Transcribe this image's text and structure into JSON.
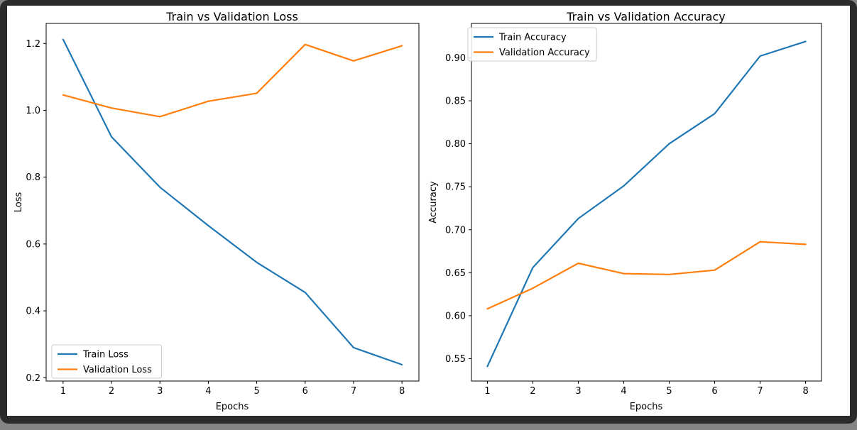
{
  "figure": {
    "background": "#ffffff",
    "window_background": "#2b2b2b"
  },
  "chart_data": [
    {
      "type": "line",
      "title": "Train vs Validation Loss",
      "xlabel": "Epochs",
      "ylabel": "Loss",
      "x": [
        1,
        2,
        3,
        4,
        5,
        6,
        7,
        8
      ],
      "series": [
        {
          "name": "Train Loss",
          "color": "#1f77b4",
          "values": [
            1.212,
            0.921,
            0.77,
            0.655,
            0.545,
            0.455,
            0.29,
            0.239
          ]
        },
        {
          "name": "Validation Loss",
          "color": "#ff7f0e",
          "values": [
            1.046,
            1.007,
            0.981,
            1.027,
            1.051,
            1.197,
            1.148,
            1.193
          ]
        }
      ],
      "xlim": [
        0.65,
        8.35
      ],
      "ylim": [
        0.19,
        1.26
      ],
      "xtick_values": [
        1,
        2,
        3,
        4,
        5,
        6,
        7,
        8
      ],
      "xtick_labels": [
        "1",
        "2",
        "3",
        "4",
        "5",
        "6",
        "7",
        "8"
      ],
      "ytick_values": [
        0.2,
        0.4,
        0.6,
        0.8,
        1.0,
        1.2
      ],
      "ytick_labels": [
        "0.2",
        "0.4",
        "0.6",
        "0.8",
        "1.0",
        "1.2"
      ],
      "grid": false,
      "legend_position": "lower-left"
    },
    {
      "type": "line",
      "title": "Train vs Validation Accuracy",
      "xlabel": "Epochs",
      "ylabel": "Accuracy",
      "x": [
        1,
        2,
        3,
        4,
        5,
        6,
        7,
        8
      ],
      "series": [
        {
          "name": "Train Accuracy",
          "color": "#1f77b4",
          "values": [
            0.541,
            0.656,
            0.713,
            0.751,
            0.8,
            0.835,
            0.902,
            0.919
          ]
        },
        {
          "name": "Validation Accuracy",
          "color": "#ff7f0e",
          "values": [
            0.608,
            0.632,
            0.661,
            0.649,
            0.648,
            0.653,
            0.686,
            0.683
          ]
        }
      ],
      "xlim": [
        0.65,
        8.35
      ],
      "ylim": [
        0.524,
        0.94
      ],
      "xtick_values": [
        1,
        2,
        3,
        4,
        5,
        6,
        7,
        8
      ],
      "xtick_labels": [
        "1",
        "2",
        "3",
        "4",
        "5",
        "6",
        "7",
        "8"
      ],
      "ytick_values": [
        0.55,
        0.6,
        0.65,
        0.7,
        0.75,
        0.8,
        0.85,
        0.9
      ],
      "ytick_labels": [
        "0.55",
        "0.60",
        "0.65",
        "0.70",
        "0.75",
        "0.80",
        "0.85",
        "0.90"
      ],
      "grid": false,
      "legend_position": "upper-left"
    }
  ]
}
